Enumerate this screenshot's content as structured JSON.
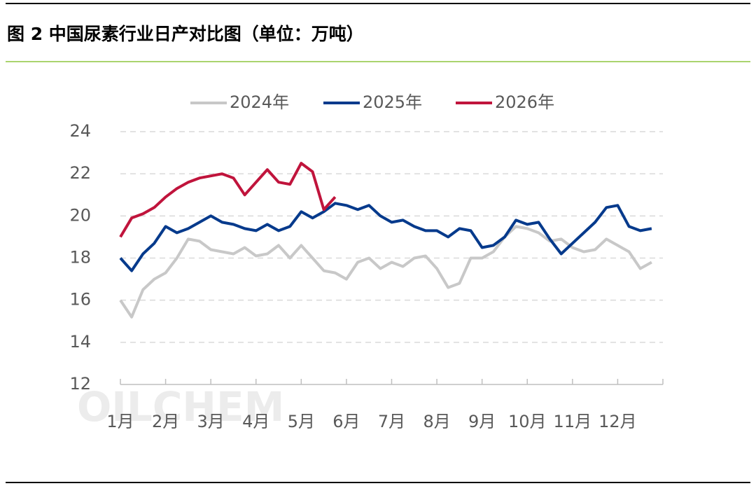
{
  "chart_data": {
    "type": "line",
    "title": "图 2 中国尿素行业日产对比图（单位：万吨）",
    "watermark": "OILCHEM",
    "categories": [
      "1月",
      null,
      null,
      null,
      "2月",
      null,
      null,
      null,
      "3月",
      null,
      null,
      null,
      "4月",
      null,
      null,
      null,
      "5月",
      null,
      null,
      null,
      "6月",
      null,
      null,
      null,
      "7月",
      null,
      null,
      null,
      "8月",
      null,
      null,
      null,
      "9月",
      null,
      null,
      null,
      "10月",
      null,
      null,
      null,
      "11月",
      null,
      null,
      null,
      "12月",
      null,
      null,
      null
    ],
    "series": [
      {
        "name": "2024年",
        "color": "#c8c8c8",
        "values": [
          16.0,
          15.2,
          16.5,
          17.0,
          17.3,
          18.0,
          18.9,
          18.8,
          18.4,
          18.3,
          18.2,
          18.5,
          18.1,
          18.2,
          18.6,
          18.0,
          18.6,
          18.0,
          17.4,
          17.3,
          17.0,
          17.8,
          18.0,
          17.5,
          17.8,
          17.6,
          18.0,
          18.1,
          17.5,
          16.6,
          16.8,
          18.0,
          18.0,
          18.3,
          19.0,
          19.5,
          19.4,
          19.2,
          18.8,
          18.9,
          18.5,
          18.3,
          18.4,
          18.9,
          18.6,
          18.3,
          17.5,
          17.8
        ]
      },
      {
        "name": "2025年",
        "color": "#063a8c",
        "values": [
          18.0,
          17.4,
          18.2,
          18.7,
          19.5,
          19.2,
          19.4,
          19.7,
          20.0,
          19.7,
          19.6,
          19.4,
          19.3,
          19.6,
          19.3,
          19.5,
          20.2,
          19.9,
          20.2,
          20.6,
          20.5,
          20.3,
          20.5,
          20.0,
          19.7,
          19.8,
          19.5,
          19.3,
          19.3,
          19.0,
          19.4,
          19.3,
          18.5,
          18.6,
          19.0,
          19.8,
          19.6,
          19.7,
          18.9,
          18.2,
          18.7,
          19.2,
          19.7,
          20.4,
          20.5,
          19.5,
          19.3,
          19.4
        ]
      },
      {
        "name": "2026年",
        "color": "#c0143c",
        "values": [
          19.0,
          19.9,
          20.1,
          20.4,
          20.9,
          21.3,
          21.6,
          21.8,
          21.9,
          22.0,
          21.8,
          21.0,
          21.6,
          22.2,
          21.6,
          21.5,
          22.5,
          22.1,
          20.3,
          20.9,
          null,
          null,
          null,
          null,
          null,
          null,
          null,
          null,
          null,
          null,
          null,
          null,
          null,
          null,
          null,
          null,
          null,
          null,
          null,
          null,
          null,
          null,
          null,
          null,
          null,
          null,
          null,
          null
        ]
      }
    ],
    "ylim": [
      12,
      24
    ],
    "yticks": [
      12,
      14,
      16,
      18,
      20,
      22,
      24
    ],
    "grid": true
  }
}
